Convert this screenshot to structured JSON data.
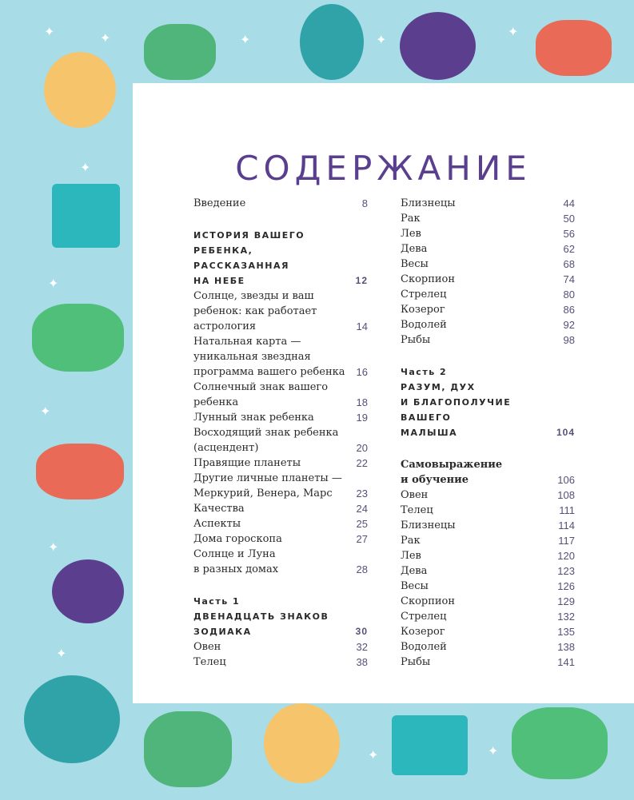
{
  "title": "СОДЕРЖАНИЕ",
  "colors": {
    "background": "#a8dce6",
    "accent": "#5a3f8e",
    "page_number": "#55507a"
  },
  "left_column": [
    {
      "style": "normal",
      "lines": [
        "Введение"
      ],
      "page": "8"
    },
    {
      "style": "head",
      "gap": true,
      "lines": [
        "ИСТОРИЯ ВАШЕГО",
        "РЕБЕНКА,",
        "РАССКАЗАННАЯ",
        "НА НЕБЕ"
      ],
      "page": "12"
    },
    {
      "style": "normal",
      "lines": [
        "Солнце, звезды и ваш",
        "ребенок: как работает",
        "астрология"
      ],
      "page": "14"
    },
    {
      "style": "normal",
      "lines": [
        "Натальная карта —",
        "уникальная звездная",
        "программа вашего ребенка"
      ],
      "page": "16"
    },
    {
      "style": "normal",
      "lines": [
        "Солнечный знак вашего",
        "ребенка"
      ],
      "page": "18"
    },
    {
      "style": "normal",
      "lines": [
        "Лунный знак ребенка"
      ],
      "page": "19"
    },
    {
      "style": "normal",
      "lines": [
        "Восходящий знак ребенка",
        "(асцендент)"
      ],
      "page": "20"
    },
    {
      "style": "normal",
      "lines": [
        "Правящие планеты"
      ],
      "page": "22"
    },
    {
      "style": "normal",
      "lines": [
        "Другие личные планеты —",
        "Меркурий, Венера, Марс"
      ],
      "page": "23"
    },
    {
      "style": "normal",
      "lines": [
        "Качества"
      ],
      "page": "24"
    },
    {
      "style": "normal",
      "lines": [
        "Аспекты"
      ],
      "page": "25"
    },
    {
      "style": "normal",
      "lines": [
        "Дома гороскопа"
      ],
      "page": "27"
    },
    {
      "style": "normal",
      "lines": [
        "Солнце и Луна",
        "в разных домах"
      ],
      "page": "28"
    },
    {
      "style": "part",
      "gap": true,
      "lines": [
        "Часть 1"
      ],
      "page": ""
    },
    {
      "style": "head",
      "lines": [
        "ДВЕНАДЦАТЬ ЗНАКОВ",
        "ЗОДИАКА"
      ],
      "page": "30"
    },
    {
      "style": "normal",
      "lines": [
        "Овен"
      ],
      "page": "32"
    },
    {
      "style": "normal",
      "lines": [
        "Телец"
      ],
      "page": "38"
    }
  ],
  "right_column": [
    {
      "style": "normal",
      "lines": [
        "Близнецы"
      ],
      "page": "44"
    },
    {
      "style": "normal",
      "lines": [
        "Рак"
      ],
      "page": "50"
    },
    {
      "style": "normal",
      "lines": [
        "Лев"
      ],
      "page": "56"
    },
    {
      "style": "normal",
      "lines": [
        "Дева"
      ],
      "page": "62"
    },
    {
      "style": "normal",
      "lines": [
        "Весы"
      ],
      "page": "68"
    },
    {
      "style": "normal",
      "lines": [
        "Скорпион"
      ],
      "page": "74"
    },
    {
      "style": "normal",
      "lines": [
        "Стрелец"
      ],
      "page": "80"
    },
    {
      "style": "normal",
      "lines": [
        "Козерог"
      ],
      "page": "86"
    },
    {
      "style": "normal",
      "lines": [
        "Водолей"
      ],
      "page": "92"
    },
    {
      "style": "normal",
      "lines": [
        "Рыбы"
      ],
      "page": "98"
    },
    {
      "style": "part",
      "gap": true,
      "lines": [
        "Часть 2"
      ],
      "page": ""
    },
    {
      "style": "head",
      "lines": [
        "РАЗУМ, ДУХ",
        "И БЛАГОПОЛУЧИЕ",
        "ВАШЕГО",
        "МАЛЫША"
      ],
      "page": "104"
    },
    {
      "style": "bold",
      "gap": true,
      "lines": [
        "Самовыражение",
        "и обучение"
      ],
      "page": "106"
    },
    {
      "style": "normal",
      "lines": [
        "Овен"
      ],
      "page": "108"
    },
    {
      "style": "normal",
      "lines": [
        "Телец"
      ],
      "page": "111"
    },
    {
      "style": "normal",
      "lines": [
        "Близнецы"
      ],
      "page": "114"
    },
    {
      "style": "normal",
      "lines": [
        "Рак"
      ],
      "page": "117"
    },
    {
      "style": "normal",
      "lines": [
        "Лев"
      ],
      "page": "120"
    },
    {
      "style": "normal",
      "lines": [
        "Дева"
      ],
      "page": "123"
    },
    {
      "style": "normal",
      "lines": [
        "Весы"
      ],
      "page": "126"
    },
    {
      "style": "normal",
      "lines": [
        "Скорпион"
      ],
      "page": "129"
    },
    {
      "style": "normal",
      "lines": [
        "Стрелец"
      ],
      "page": "132"
    },
    {
      "style": "normal",
      "lines": [
        "Козерог"
      ],
      "page": "135"
    },
    {
      "style": "normal",
      "lines": [
        "Водолей"
      ],
      "page": "138"
    },
    {
      "style": "normal",
      "lines": [
        "Рыбы"
      ],
      "page": "141"
    }
  ]
}
